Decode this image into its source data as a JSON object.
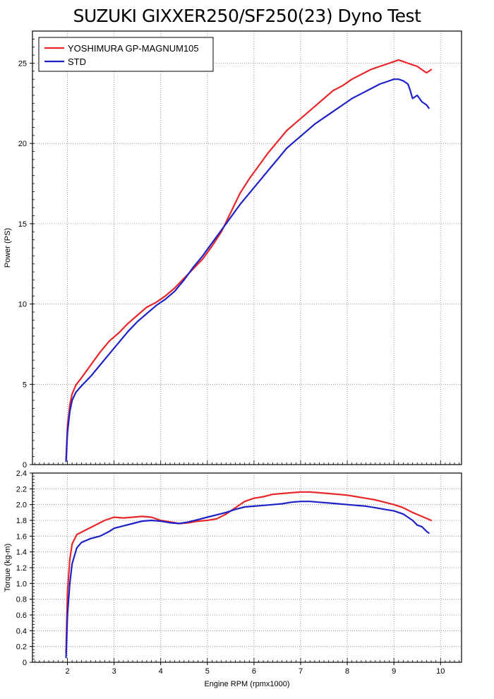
{
  "chart_title": "SUZUKI GIXXER250/SF250(23) Dyno Test",
  "colors": {
    "yoshimura": "#e8262a",
    "std": "#1d22c8",
    "grid": "#808080",
    "frame": "#000000"
  },
  "chart_data": [
    {
      "type": "line",
      "panel": "power",
      "title": "SUZUKI GIXXER250/SF250(23) Dyno Test",
      "xlabel": "",
      "ylabel": "Power (PS)",
      "xlim": [
        1.25,
        10.45
      ],
      "ylim": [
        0,
        27
      ],
      "yticks": [
        0,
        5,
        10,
        15,
        20,
        25
      ],
      "xgrid": [
        2,
        3,
        4,
        5,
        6,
        7,
        8,
        9,
        10
      ],
      "ygrid": [
        5,
        10,
        15,
        20,
        25
      ],
      "grid": "dotted",
      "legend_position": "top-left",
      "series": [
        {
          "name": "YOSHIMURA GP-MAGNUM105",
          "color": "#e8262a",
          "x": [
            1.97,
            2.0,
            2.05,
            2.1,
            2.18,
            2.3,
            2.5,
            2.7,
            2.9,
            3.1,
            3.3,
            3.5,
            3.7,
            3.9,
            4.1,
            4.3,
            4.5,
            4.7,
            4.9,
            5.1,
            5.3,
            5.5,
            5.7,
            5.9,
            6.1,
            6.3,
            6.5,
            6.7,
            6.9,
            7.1,
            7.3,
            7.5,
            7.7,
            7.9,
            8.1,
            8.3,
            8.5,
            8.7,
            8.9,
            9.0,
            9.1,
            9.2,
            9.3,
            9.4,
            9.5,
            9.6,
            9.7,
            9.8
          ],
          "y": [
            0.3,
            2.4,
            3.7,
            4.4,
            4.95,
            5.4,
            6.2,
            7.0,
            7.7,
            8.2,
            8.8,
            9.3,
            9.8,
            10.1,
            10.5,
            11.0,
            11.6,
            12.2,
            12.8,
            13.6,
            14.5,
            15.7,
            16.9,
            17.8,
            18.6,
            19.4,
            20.1,
            20.8,
            21.3,
            21.8,
            22.3,
            22.8,
            23.3,
            23.6,
            24.0,
            24.3,
            24.6,
            24.8,
            25.0,
            25.1,
            25.2,
            25.1,
            25.0,
            24.9,
            24.8,
            24.6,
            24.4,
            24.6
          ]
        },
        {
          "name": "STD",
          "color": "#1d22c8",
          "x": [
            1.97,
            2.0,
            2.05,
            2.1,
            2.18,
            2.3,
            2.5,
            2.7,
            2.9,
            3.1,
            3.3,
            3.5,
            3.7,
            3.9,
            4.1,
            4.3,
            4.5,
            4.7,
            4.9,
            5.1,
            5.3,
            5.5,
            5.7,
            5.9,
            6.1,
            6.3,
            6.5,
            6.7,
            6.9,
            7.1,
            7.3,
            7.5,
            7.7,
            7.9,
            8.1,
            8.3,
            8.5,
            8.7,
            8.9,
            9.0,
            9.1,
            9.2,
            9.3,
            9.35,
            9.4,
            9.5,
            9.6,
            9.7,
            9.75
          ],
          "y": [
            0.2,
            2.0,
            3.3,
            4.0,
            4.5,
            4.9,
            5.5,
            6.2,
            6.9,
            7.6,
            8.3,
            8.9,
            9.4,
            9.9,
            10.3,
            10.8,
            11.5,
            12.3,
            13.0,
            13.8,
            14.6,
            15.4,
            16.2,
            16.9,
            17.6,
            18.3,
            19.0,
            19.7,
            20.2,
            20.7,
            21.2,
            21.6,
            22.0,
            22.4,
            22.8,
            23.1,
            23.4,
            23.7,
            23.9,
            24.0,
            24.0,
            23.9,
            23.7,
            23.3,
            22.8,
            23.0,
            22.6,
            22.4,
            22.2
          ]
        }
      ]
    },
    {
      "type": "line",
      "panel": "torque",
      "title": "",
      "xlabel": "Engine RPM (rpmx1000)",
      "ylabel": "Torque (kg-m)",
      "xlim": [
        1.25,
        10.45
      ],
      "ylim": [
        0,
        2.4
      ],
      "yticks": [
        0,
        0.2,
        0.4,
        0.6,
        0.8,
        1.0,
        1.2,
        1.4,
        1.6,
        1.8,
        2.0,
        2.2,
        2.4
      ],
      "ytick_labels": [
        "0",
        "0.2",
        "0.4",
        "0.6",
        "0.8",
        "1.0",
        "1.2",
        "1.4",
        "1.6",
        "1.8",
        "2.0",
        "2.2",
        "2.4"
      ],
      "xticks": [
        2,
        3,
        4,
        5,
        6,
        7,
        8,
        9,
        10
      ],
      "xtick_labels": [
        "2",
        "3",
        "4",
        "5",
        "6",
        "7",
        "8",
        "9",
        "10"
      ],
      "xgrid": [
        2,
        3,
        4,
        5,
        6,
        7,
        8,
        9,
        10
      ],
      "ygrid": [
        0.2,
        0.4,
        0.6,
        0.8,
        1.0,
        1.2,
        1.4,
        1.6,
        1.8,
        2.0,
        2.2
      ],
      "grid": "dotted",
      "series": [
        {
          "name": "YOSHIMURA GP-MAGNUM105",
          "color": "#e8262a",
          "x": [
            1.97,
            2.0,
            2.05,
            2.1,
            2.2,
            2.4,
            2.6,
            2.8,
            3.0,
            3.2,
            3.4,
            3.6,
            3.8,
            4.0,
            4.2,
            4.4,
            4.6,
            4.8,
            5.0,
            5.2,
            5.4,
            5.6,
            5.8,
            6.0,
            6.2,
            6.4,
            6.6,
            6.8,
            7.0,
            7.2,
            7.4,
            7.6,
            7.8,
            8.0,
            8.2,
            8.4,
            8.6,
            8.8,
            9.0,
            9.2,
            9.4,
            9.6,
            9.8
          ],
          "y": [
            0.12,
            0.9,
            1.3,
            1.5,
            1.62,
            1.68,
            1.74,
            1.8,
            1.84,
            1.83,
            1.84,
            1.85,
            1.84,
            1.8,
            1.78,
            1.76,
            1.77,
            1.79,
            1.8,
            1.82,
            1.88,
            1.96,
            2.04,
            2.08,
            2.1,
            2.13,
            2.14,
            2.15,
            2.16,
            2.16,
            2.15,
            2.14,
            2.13,
            2.12,
            2.1,
            2.08,
            2.06,
            2.03,
            2.0,
            1.96,
            1.9,
            1.85,
            1.8
          ]
        },
        {
          "name": "STD",
          "color": "#1d22c8",
          "x": [
            1.97,
            2.0,
            2.05,
            2.1,
            2.2,
            2.3,
            2.5,
            2.7,
            2.9,
            3.0,
            3.2,
            3.4,
            3.6,
            3.8,
            4.0,
            4.2,
            4.4,
            4.6,
            4.8,
            5.0,
            5.2,
            5.4,
            5.6,
            5.8,
            6.0,
            6.2,
            6.4,
            6.6,
            6.8,
            7.0,
            7.2,
            7.4,
            7.6,
            7.8,
            8.0,
            8.2,
            8.4,
            8.6,
            8.8,
            9.0,
            9.2,
            9.3,
            9.4,
            9.5,
            9.6,
            9.7,
            9.75
          ],
          "y": [
            0.06,
            0.6,
            1.0,
            1.25,
            1.45,
            1.52,
            1.57,
            1.6,
            1.66,
            1.7,
            1.73,
            1.76,
            1.79,
            1.8,
            1.79,
            1.77,
            1.76,
            1.78,
            1.81,
            1.84,
            1.87,
            1.9,
            1.94,
            1.97,
            1.98,
            1.99,
            2.0,
            2.01,
            2.03,
            2.04,
            2.04,
            2.03,
            2.02,
            2.01,
            2.0,
            1.99,
            1.98,
            1.96,
            1.94,
            1.92,
            1.88,
            1.84,
            1.8,
            1.74,
            1.72,
            1.66,
            1.64
          ]
        }
      ]
    }
  ]
}
